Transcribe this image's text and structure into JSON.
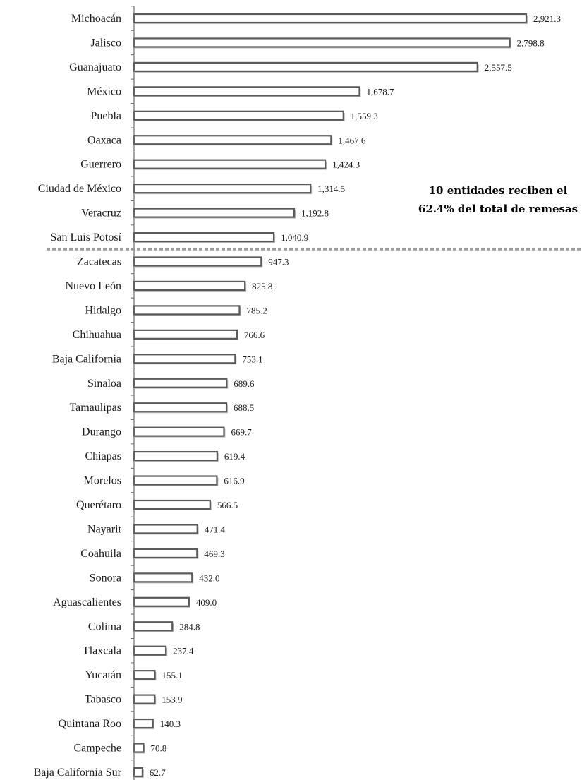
{
  "chart_data": {
    "type": "bar",
    "orientation": "horizontal",
    "categories": [
      "Michoacán",
      "Jalisco",
      "Guanajuato",
      "México",
      "Puebla",
      "Oaxaca",
      "Guerrero",
      "Ciudad de México",
      "Veracruz",
      "San Luis Potosí",
      "Zacatecas",
      "Nuevo León",
      "Hidalgo",
      "Chihuahua",
      "Baja California",
      "Sinaloa",
      "Tamaulipas",
      "Durango",
      "Chiapas",
      "Morelos",
      "Querétaro",
      "Nayarit",
      "Coahuila",
      "Sonora",
      "Aguascalientes",
      "Colima",
      "Tlaxcala",
      "Yucatán",
      "Tabasco",
      "Quintana Roo",
      "Campeche",
      "Baja California Sur"
    ],
    "values": [
      2921.3,
      2798.8,
      2557.5,
      1678.7,
      1559.3,
      1467.6,
      1424.3,
      1314.5,
      1192.8,
      1040.9,
      947.3,
      825.8,
      785.2,
      766.6,
      753.1,
      689.6,
      688.5,
      669.7,
      619.4,
      616.9,
      566.5,
      471.4,
      469.3,
      432.0,
      409.0,
      284.8,
      237.4,
      155.1,
      153.9,
      140.3,
      70.8,
      62.7
    ],
    "value_labels": [
      "2,921.3",
      "2,798.8",
      "2,557.5",
      "1,678.7",
      "1,559.3",
      "1,467.6",
      "1,424.3",
      "1,314.5",
      "1,192.8",
      "1,040.9",
      "947.3",
      "825.8",
      "785.2",
      "766.6",
      "753.1",
      "689.6",
      "688.5",
      "669.7",
      "619.4",
      "616.9",
      "566.5",
      "471.4",
      "469.3",
      "432.0",
      "409.0",
      "284.8",
      "237.4",
      "155.1",
      "153.9",
      "140.3",
      "70.8",
      "62.7"
    ],
    "annotation": [
      "10 entidades reciben el",
      "62.4% del total de remesas"
    ],
    "divider_after_index": 9,
    "xlim": [
      0,
      2921.3
    ],
    "grid": false,
    "legend": "none",
    "colors": {
      "bar_fill": "#ffffff",
      "bar_stroke": "#5a5a5a",
      "bar_shadow": "#bdbdbd",
      "divider": "#9a9a9a"
    }
  }
}
